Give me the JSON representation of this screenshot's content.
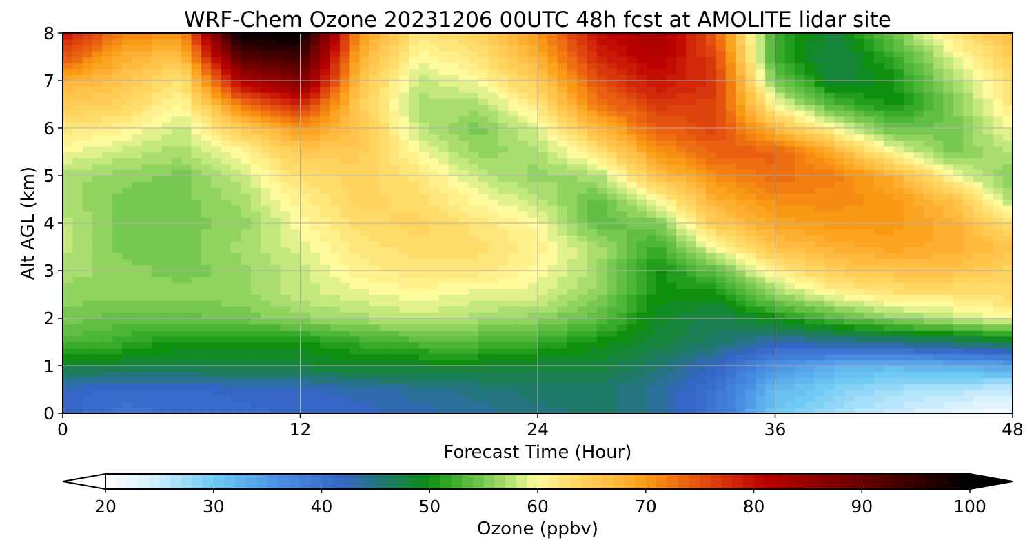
{
  "chart_data": {
    "type": "heatmap",
    "title": "WRF-Chem Ozone  20231206 00UTC 48h fcst at AMOLITE lidar site",
    "xlabel": "Forecast Time (Hour)",
    "ylabel": "Alt AGL (km)",
    "xlim": [
      0,
      48
    ],
    "ylim": [
      0,
      8
    ],
    "xticks": [
      "0",
      "12",
      "24",
      "36",
      "48"
    ],
    "yticks": [
      "0",
      "1",
      "2",
      "3",
      "4",
      "5",
      "6",
      "7",
      "8"
    ],
    "grid": true,
    "x_hours": [
      0,
      3,
      6,
      9,
      12,
      15,
      18,
      21,
      24,
      27,
      30,
      33,
      36,
      39,
      42,
      45,
      48
    ],
    "z_km": [
      0,
      0.5,
      1,
      1.5,
      2,
      2.5,
      3,
      3.5,
      4,
      4.5,
      5,
      5.5,
      6,
      6.5,
      7,
      7.5,
      8
    ],
    "values_ppbv": [
      [
        42,
        40,
        41,
        41,
        42,
        42,
        43,
        44,
        45,
        46,
        44,
        40,
        30,
        27,
        25,
        23,
        21
      ],
      [
        42,
        41,
        41,
        42,
        42,
        43,
        44,
        45,
        46,
        46,
        44,
        40,
        32,
        29,
        27,
        26,
        25
      ],
      [
        48,
        48,
        48,
        48,
        48,
        49,
        49,
        49,
        48,
        48,
        46,
        42,
        36,
        33,
        32,
        33,
        34
      ],
      [
        53,
        52,
        50,
        50,
        50,
        52,
        53,
        53,
        52,
        50,
        48,
        46,
        43,
        44,
        45,
        46,
        48
      ],
      [
        55,
        54,
        54,
        55,
        56,
        57,
        58,
        57,
        56,
        54,
        49,
        47,
        50,
        53,
        56,
        58,
        60
      ],
      [
        56,
        56,
        56,
        56,
        58,
        59,
        60,
        59,
        59,
        56,
        50,
        50,
        56,
        60,
        62,
        62,
        63
      ],
      [
        57,
        56,
        55,
        56,
        58,
        61,
        62,
        62,
        60,
        57,
        50,
        54,
        61,
        65,
        66,
        66,
        64
      ],
      [
        58,
        55,
        55,
        57,
        59,
        62,
        63,
        63,
        61,
        57,
        52,
        60,
        66,
        68,
        69,
        68,
        66
      ],
      [
        58,
        55,
        55,
        56,
        60,
        63,
        64,
        62,
        60,
        54,
        55,
        65,
        69,
        70,
        70,
        68,
        62
      ],
      [
        57,
        55,
        55,
        57,
        61,
        64,
        63,
        60,
        58,
        54,
        60,
        68,
        71,
        71,
        70,
        66,
        57
      ],
      [
        57,
        56,
        55,
        58,
        63,
        64,
        62,
        58,
        56,
        57,
        66,
        71,
        73,
        72,
        68,
        60,
        55
      ],
      [
        60,
        58,
        57,
        60,
        65,
        65,
        60,
        56,
        57,
        62,
        70,
        74,
        74,
        68,
        60,
        55,
        58
      ],
      [
        62,
        61,
        58,
        65,
        70,
        66,
        58,
        55,
        59,
        67,
        74,
        76,
        67,
        60,
        54,
        55,
        60
      ],
      [
        65,
        64,
        60,
        72,
        78,
        65,
        57,
        57,
        62,
        72,
        77,
        76,
        60,
        53,
        50,
        55,
        62
      ],
      [
        68,
        66,
        62,
        82,
        88,
        66,
        58,
        60,
        65,
        75,
        80,
        77,
        55,
        48,
        50,
        57,
        63
      ],
      [
        75,
        68,
        66,
        92,
        94,
        68,
        60,
        62,
        68,
        78,
        82,
        76,
        52,
        47,
        52,
        59,
        65
      ],
      [
        80,
        72,
        70,
        100,
        100,
        70,
        62,
        64,
        70,
        80,
        84,
        74,
        52,
        48,
        55,
        62,
        67
      ]
    ],
    "colorbar": {
      "label": "Ozone  (ppbv)",
      "min": 20,
      "max": 100,
      "ticks": [
        "20",
        "30",
        "40",
        "50",
        "60",
        "70",
        "80",
        "90",
        "100"
      ],
      "extend": "both",
      "stops": [
        {
          "v": 20,
          "c": "#ffffff"
        },
        {
          "v": 24,
          "c": "#d8f2fd"
        },
        {
          "v": 30,
          "c": "#6fcaf4"
        },
        {
          "v": 36,
          "c": "#4a91e6"
        },
        {
          "v": 42,
          "c": "#3565c5"
        },
        {
          "v": 46,
          "c": "#1f7a6a"
        },
        {
          "v": 50,
          "c": "#0e8f0e"
        },
        {
          "v": 52,
          "c": "#38ab2b"
        },
        {
          "v": 55,
          "c": "#77c850"
        },
        {
          "v": 58,
          "c": "#c3e87e"
        },
        {
          "v": 60,
          "c": "#fffa9c"
        },
        {
          "v": 63,
          "c": "#ffdc6a"
        },
        {
          "v": 67,
          "c": "#ffba3f"
        },
        {
          "v": 70,
          "c": "#fa9a14"
        },
        {
          "v": 74,
          "c": "#ea6010"
        },
        {
          "v": 78,
          "c": "#d2280a"
        },
        {
          "v": 81,
          "c": "#bc0000"
        },
        {
          "v": 86,
          "c": "#8e0000"
        },
        {
          "v": 92,
          "c": "#560000"
        },
        {
          "v": 97,
          "c": "#1f0000"
        },
        {
          "v": 100,
          "c": "#000000"
        }
      ]
    }
  }
}
